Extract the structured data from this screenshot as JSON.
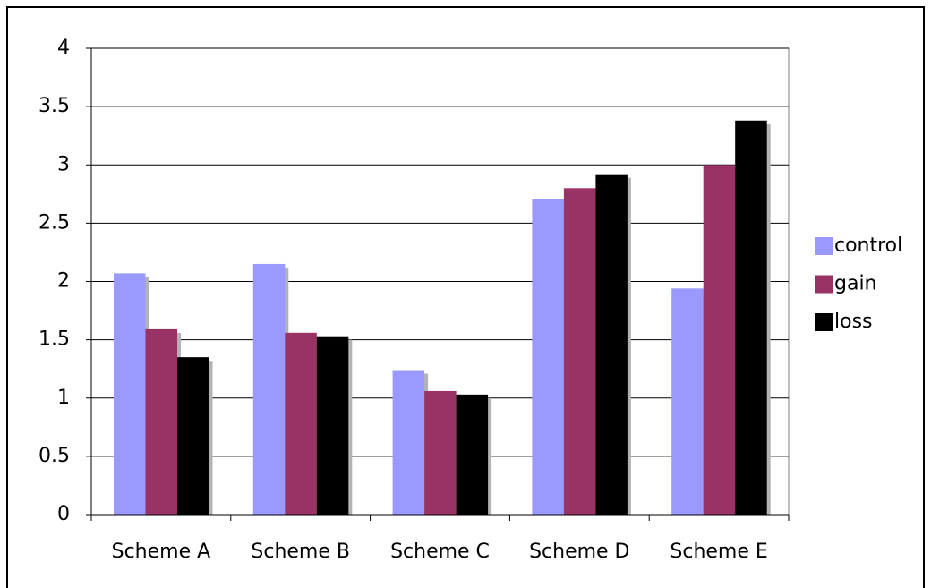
{
  "chart_data": {
    "type": "bar",
    "categories": [
      "Scheme A",
      "Scheme B",
      "Scheme C",
      "Scheme D",
      "Scheme E"
    ],
    "series": [
      {
        "name": "control",
        "color": "#9999ff",
        "values": [
          2.07,
          2.15,
          1.24,
          2.71,
          1.94
        ]
      },
      {
        "name": "gain",
        "color": "#993366",
        "values": [
          1.59,
          1.56,
          1.06,
          2.8,
          3.0
        ]
      },
      {
        "name": "loss",
        "color": "#000000",
        "values": [
          1.35,
          1.53,
          1.03,
          2.92,
          3.38
        ]
      }
    ],
    "ylim": [
      0,
      4
    ],
    "yticks": [
      0,
      0.5,
      1,
      1.5,
      2,
      2.5,
      3,
      3.5,
      4
    ],
    "grid": true,
    "legend": "right"
  }
}
